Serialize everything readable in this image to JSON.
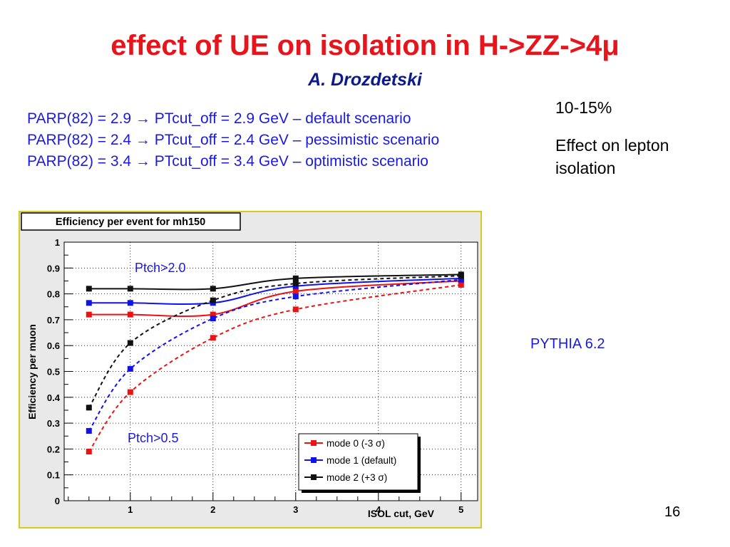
{
  "title_main": "effect of UE on isolation in H->ZZ->4",
  "title_mu": "μ",
  "subtitle": "A. Drozdetski",
  "params": [
    "PARP(82) = 2.9 → PTcut_off = 2.9 GeV – default scenario",
    "PARP(82) = 2.4 → PTcut_off = 2.4 GeV – pessimistic scenario",
    "PARP(82) = 3.4 → PTcut_off = 3.4 GeV – optimistic scenario"
  ],
  "side_pct": "10-15%",
  "side_effect": "Effect on lepton isolation",
  "pythia": "PYTHIA 6.2",
  "page_number": "16",
  "chart_data": {
    "type": "line",
    "title": "Efficiency per event for mh150",
    "xlabel": "ISOL cut, GeV",
    "ylabel": "Efficiency per muon",
    "xlim": [
      0.2,
      5.2
    ],
    "ylim": [
      0,
      1
    ],
    "xticks": [
      1,
      2,
      3,
      4,
      5
    ],
    "yticks": [
      0,
      0.1,
      0.2,
      0.3,
      0.4,
      0.5,
      0.6,
      0.7,
      0.8,
      0.9,
      1
    ],
    "grid": true,
    "legend_position": "bottom-right",
    "annotations": [
      {
        "text": "Ptch>2.0",
        "x": 1.05,
        "y": 0.915
      },
      {
        "text": "Ptch>0.5",
        "x": 0.98,
        "y": 0.235
      }
    ],
    "series": [
      {
        "name": "mode 0 (-3 σ)",
        "color": "#ee1111",
        "style": "solid",
        "x": [
          0.5,
          1,
          2,
          3,
          5
        ],
        "y": [
          0.72,
          0.72,
          0.72,
          0.81,
          0.85
        ]
      },
      {
        "name": "mode 0 (-3 σ)",
        "color": "#ee1111",
        "style": "dashed",
        "x": [
          0.5,
          1,
          2,
          3,
          5
        ],
        "y": [
          0.19,
          0.42,
          0.63,
          0.74,
          0.835
        ]
      },
      {
        "name": "mode 1 (default)",
        "color": "#1111ee",
        "style": "solid",
        "x": [
          0.5,
          1,
          2,
          3,
          5
        ],
        "y": [
          0.765,
          0.765,
          0.765,
          0.83,
          0.86
        ]
      },
      {
        "name": "mode 1 (default)",
        "color": "#1111ee",
        "style": "dashed",
        "x": [
          0.5,
          1,
          2,
          3,
          5
        ],
        "y": [
          0.27,
          0.51,
          0.705,
          0.79,
          0.855
        ]
      },
      {
        "name": "mode 2 (+3 σ)",
        "color": "#111111",
        "style": "solid",
        "x": [
          0.5,
          1,
          2,
          3,
          5
        ],
        "y": [
          0.82,
          0.82,
          0.82,
          0.86,
          0.875
        ]
      },
      {
        "name": "mode 2 (+3 σ)",
        "color": "#111111",
        "style": "dashed",
        "x": [
          0.5,
          1,
          2,
          3,
          5
        ],
        "y": [
          0.36,
          0.61,
          0.775,
          0.84,
          0.87
        ]
      }
    ],
    "legend": [
      {
        "label": "mode 0 (-3 σ)",
        "color": "#ee1111"
      },
      {
        "label": "mode 1 (default)",
        "color": "#1111ee"
      },
      {
        "label": "mode 2 (+3 σ)",
        "color": "#111111"
      }
    ]
  }
}
